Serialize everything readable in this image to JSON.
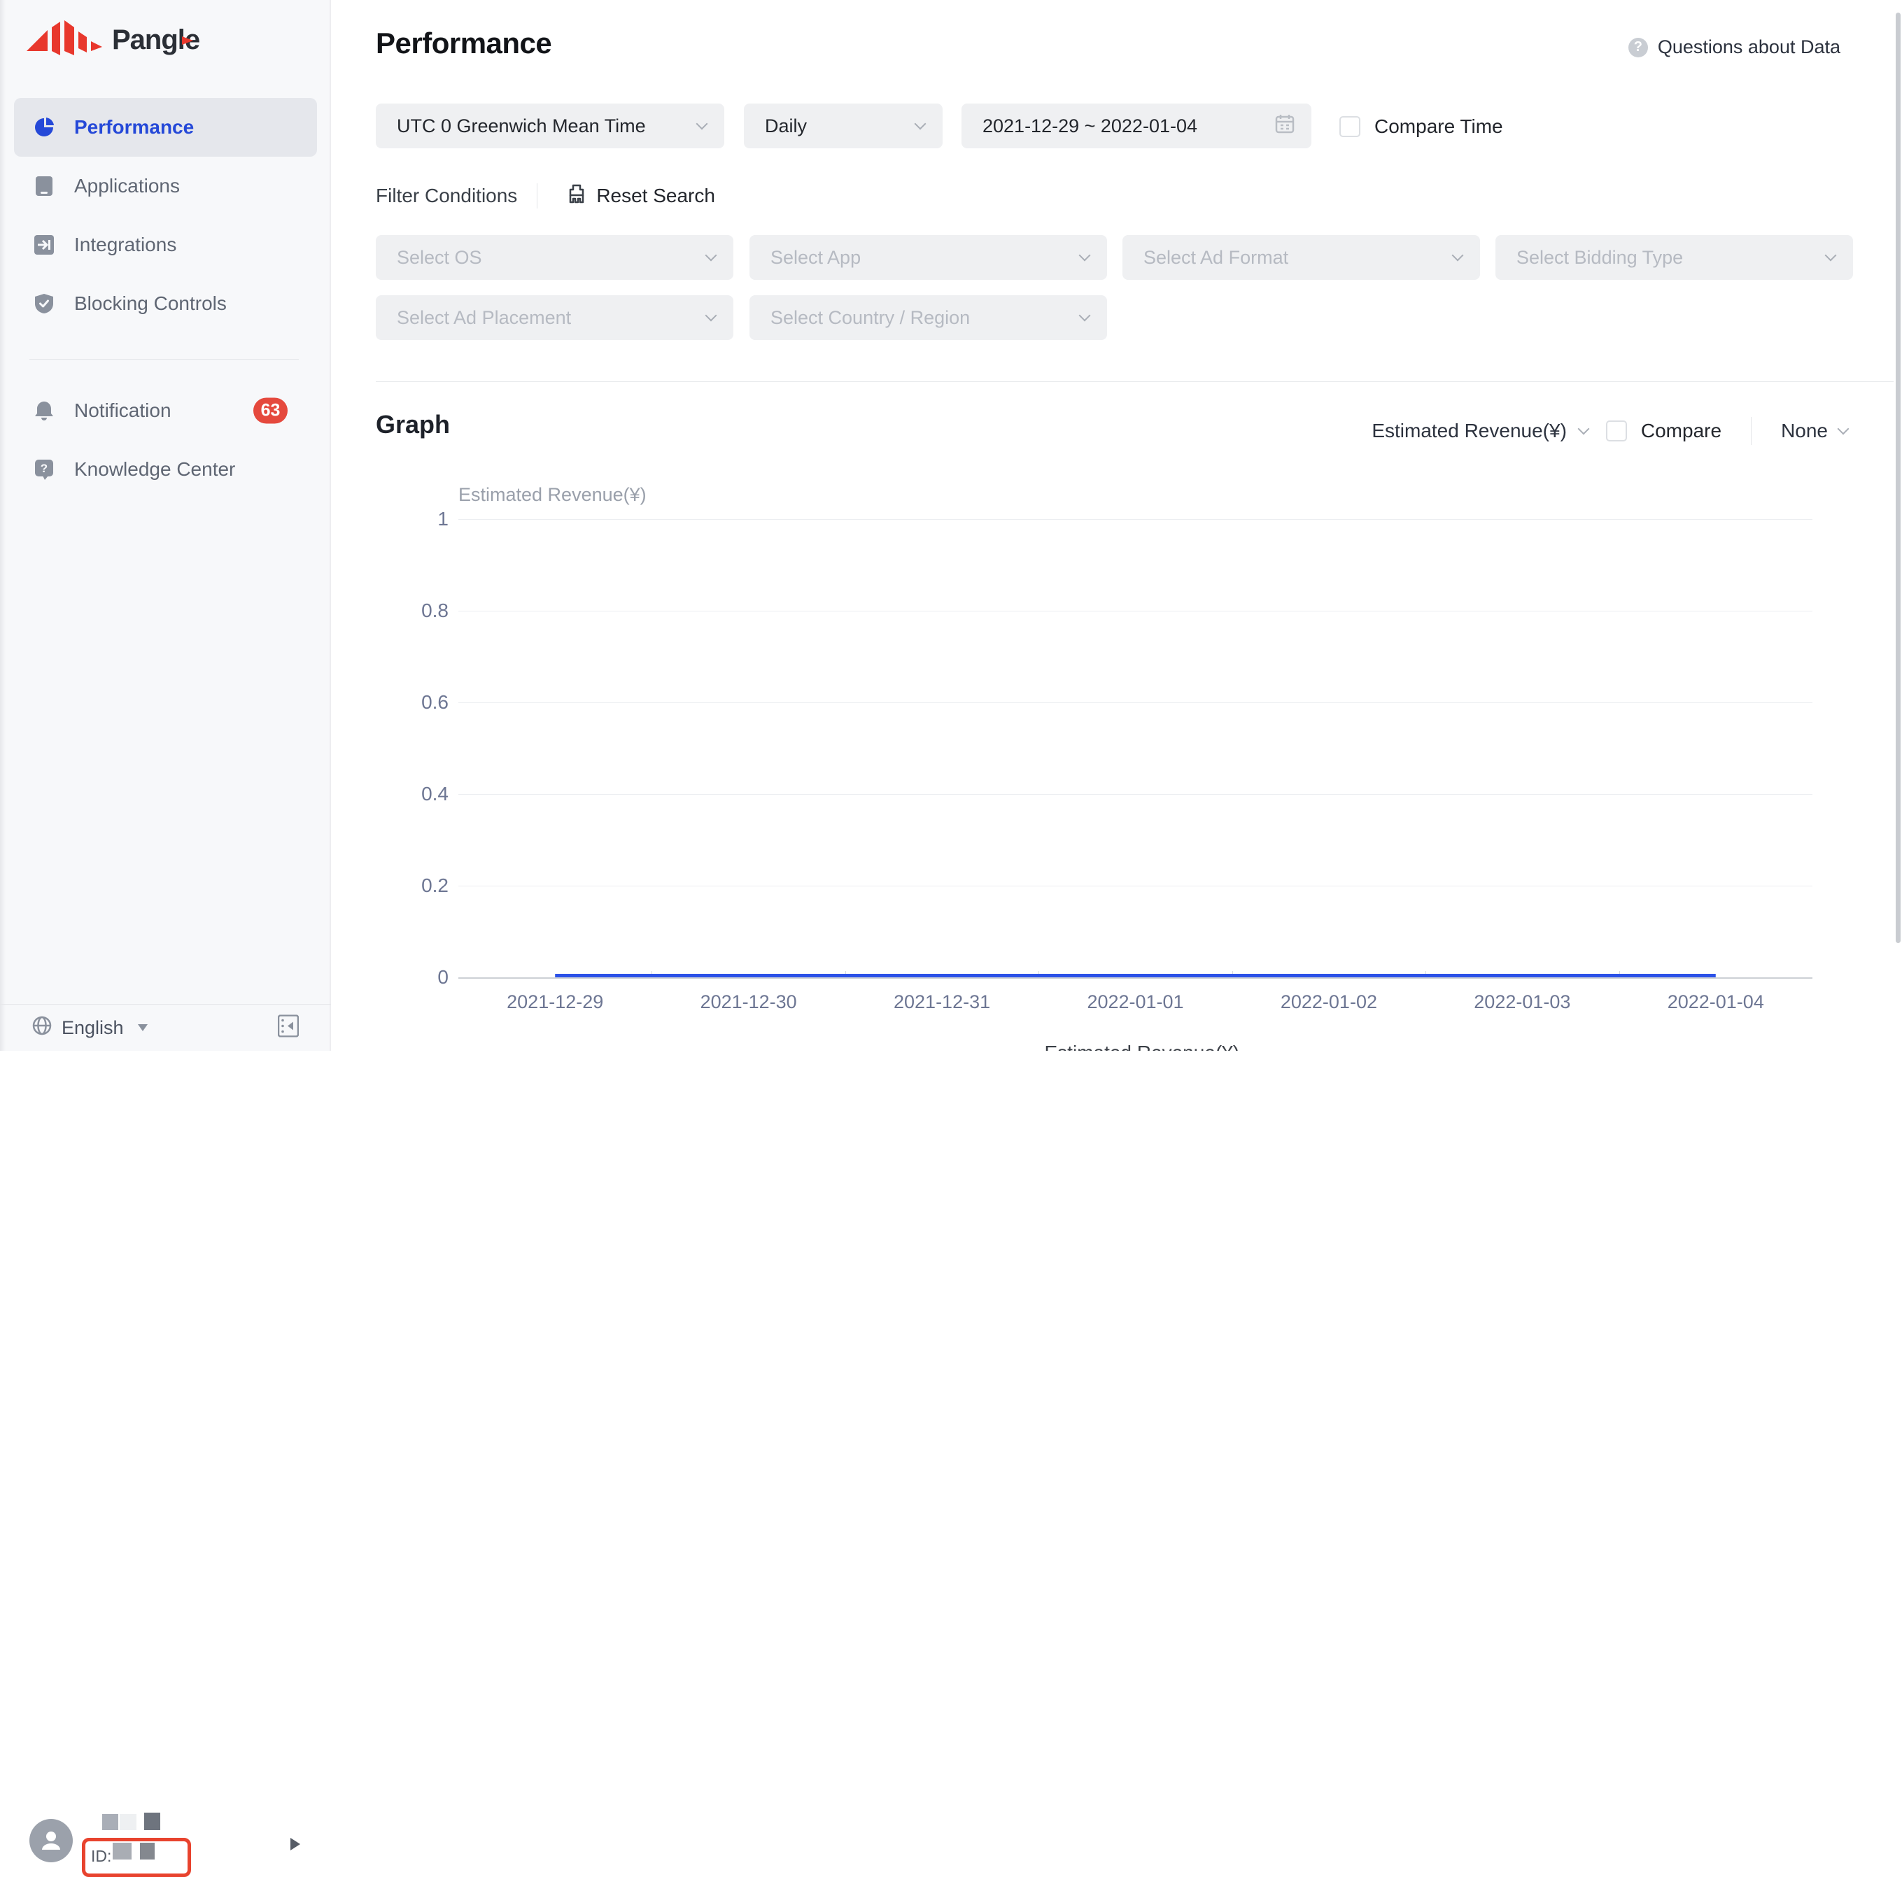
{
  "brand": {
    "name": "Pangle"
  },
  "sidebar": {
    "items": [
      {
        "label": "Performance",
        "active": true
      },
      {
        "label": "Applications",
        "active": false
      },
      {
        "label": "Integrations",
        "active": false
      },
      {
        "label": "Blocking Controls",
        "active": false
      }
    ],
    "secondary_items": [
      {
        "label": "Notification",
        "badge": "63"
      },
      {
        "label": "Knowledge Center",
        "badge": ""
      }
    ],
    "user": {
      "id_label": "ID:"
    },
    "language": "English"
  },
  "header": {
    "title": "Performance",
    "help_link": "Questions about Data"
  },
  "filters": {
    "timezone": "UTC 0 Greenwich Mean Time",
    "granularity": "Daily",
    "date_range": "2021-12-29 ~ 2022-01-04",
    "compare_time_label": "Compare Time",
    "conditions_label": "Filter Conditions",
    "reset_label": "Reset Search",
    "selects_row1": [
      "Select OS",
      "Select App",
      "Select Ad Format",
      "Select Bidding Type"
    ],
    "selects_row2": [
      "Select Ad Placement",
      "Select Country / Region"
    ]
  },
  "graph": {
    "title": "Graph",
    "metric": "Estimated Revenue(¥)",
    "compare_label": "Compare",
    "dimension": "None"
  },
  "chart_data": {
    "type": "line",
    "title": "Estimated Revenue(¥)",
    "ylabel": "Estimated Revenue(¥)",
    "x": [
      "2021-12-29",
      "2021-12-30",
      "2021-12-31",
      "2022-01-01",
      "2022-01-02",
      "2022-01-03",
      "2022-01-04"
    ],
    "series": [
      {
        "name": "Estimated Revenue(¥)",
        "values": [
          0,
          0,
          0,
          0,
          0,
          0,
          0
        ],
        "color": "#2c52e8"
      }
    ],
    "yticks": [
      0,
      0.2,
      0.4,
      0.6,
      0.8,
      1
    ],
    "ylim": [
      0,
      1
    ],
    "grid": true,
    "legend": "bottom",
    "legend_label": "Estimated Revenue(¥)"
  },
  "colors": {
    "accent_blue": "#2549d8",
    "line_blue": "#2c52e8",
    "badge_red": "#e5493d",
    "annotation_red": "#e8432e",
    "sidebar_bg": "#f7f8fa",
    "select_bg": "#eff0f2",
    "placeholder": "#b6bac2",
    "tick_label": "#6d7693",
    "gridline": "#eceef1"
  }
}
